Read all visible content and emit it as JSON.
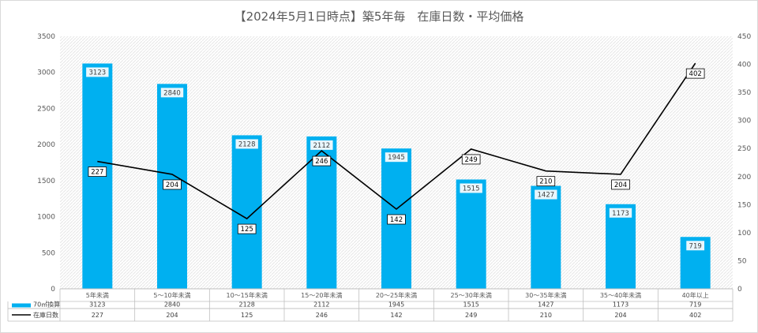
{
  "chart_data": {
    "type": "bar",
    "title": "【2024年5月1日時点】築5年毎　在庫日数・平均価格",
    "categories": [
      "5年未満",
      "5～10年未満",
      "10～15年未満",
      "15～20年未満",
      "20～25年未満",
      "25～30年未満",
      "30～35年未満",
      "35～40年未満",
      "40年以上"
    ],
    "series": [
      {
        "name": "70㎡換算",
        "type": "bar",
        "axis": "left",
        "color": "#00b0f0",
        "values": [
          3123,
          2840,
          2128,
          2112,
          1945,
          1515,
          1427,
          1173,
          719
        ]
      },
      {
        "name": "在庫日数",
        "type": "line",
        "axis": "right",
        "color": "#000000",
        "values": [
          227,
          204,
          125,
          246,
          142,
          249,
          210,
          204,
          402
        ]
      }
    ],
    "ylim": [
      0,
      3500
    ],
    "y_ticks": [
      0,
      500,
      1000,
      1500,
      2000,
      2500,
      3000,
      3500
    ],
    "y2lim": [
      0,
      450
    ],
    "y2_ticks": [
      0,
      50,
      100,
      150,
      200,
      250,
      300,
      350,
      400,
      450
    ],
    "grid": false,
    "legend": "data-table-below",
    "data_table": true
  }
}
